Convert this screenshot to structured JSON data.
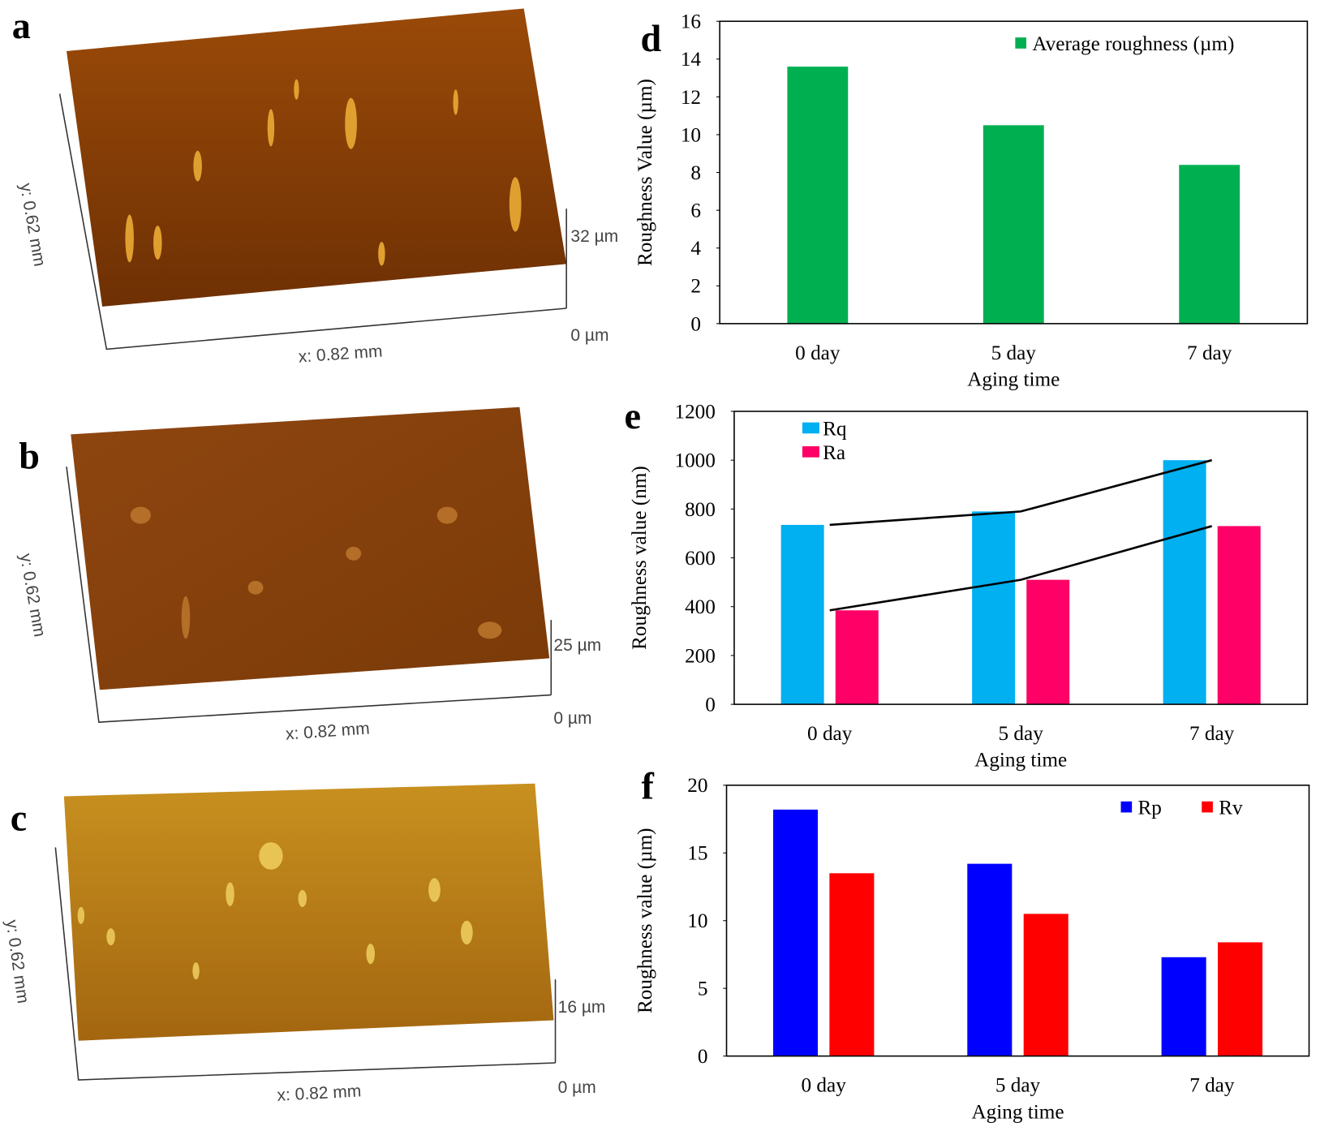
{
  "panels": [
    {
      "label": "a",
      "y_axis": "y: 0.62 mm",
      "x_axis": "x: 0.82 mm",
      "z_top": "32 µm",
      "z_bottom": "0 µm"
    },
    {
      "label": "b",
      "y_axis": "y: 0.62 mm",
      "x_axis": "x: 0.82 mm",
      "z_top": "25 µm",
      "z_bottom": "0 µm"
    },
    {
      "label": "c",
      "y_axis": "y: 0.62 mm",
      "x_axis": "x: 0.82 mm",
      "z_top": "16 µm",
      "z_bottom": "0 µm"
    }
  ],
  "chart_data": [
    {
      "label": "d",
      "type": "bar",
      "ylabel": "Roughness  Value (µm)",
      "xlabel": "Aging time",
      "categories": [
        "0 day",
        "5 day",
        "7 day"
      ],
      "series": [
        {
          "name": "Average roughness (µm)",
          "color": "#00b050",
          "values": [
            13.6,
            10.5,
            8.4
          ]
        }
      ],
      "ylim": [
        0,
        16
      ],
      "yticks": [
        0,
        2,
        4,
        6,
        8,
        10,
        12,
        14,
        16
      ],
      "legend": "upper right"
    },
    {
      "label": "e",
      "type": "bar",
      "ylabel": "Roughness  value (nm)",
      "xlabel": "Aging time",
      "categories": [
        "0 day",
        "5 day",
        "7 day"
      ],
      "series": [
        {
          "name": "Rq",
          "color": "#00b0f0",
          "values": [
            735,
            790,
            1000
          ]
        },
        {
          "name": "Ra",
          "color": "#ff0066",
          "values": [
            385,
            510,
            730
          ]
        }
      ],
      "ylim": [
        0,
        1200
      ],
      "yticks": [
        0,
        200,
        400,
        600,
        800,
        1000,
        1200
      ],
      "legend": "upper left",
      "trend_lines": true
    },
    {
      "label": "f",
      "type": "bar",
      "ylabel": "Roughness  value (µm)",
      "xlabel": "Aging time",
      "categories": [
        "0 day",
        "5 day",
        "7 day"
      ],
      "series": [
        {
          "name": "Rp",
          "color": "#0000ff",
          "values": [
            18.2,
            14.2,
            7.3
          ]
        },
        {
          "name": "Rv",
          "color": "#ff0000",
          "values": [
            13.5,
            10.5,
            8.4
          ]
        }
      ],
      "ylim": [
        0,
        20
      ],
      "yticks": [
        0,
        5,
        10,
        15,
        20
      ],
      "legend": "upper right"
    }
  ]
}
